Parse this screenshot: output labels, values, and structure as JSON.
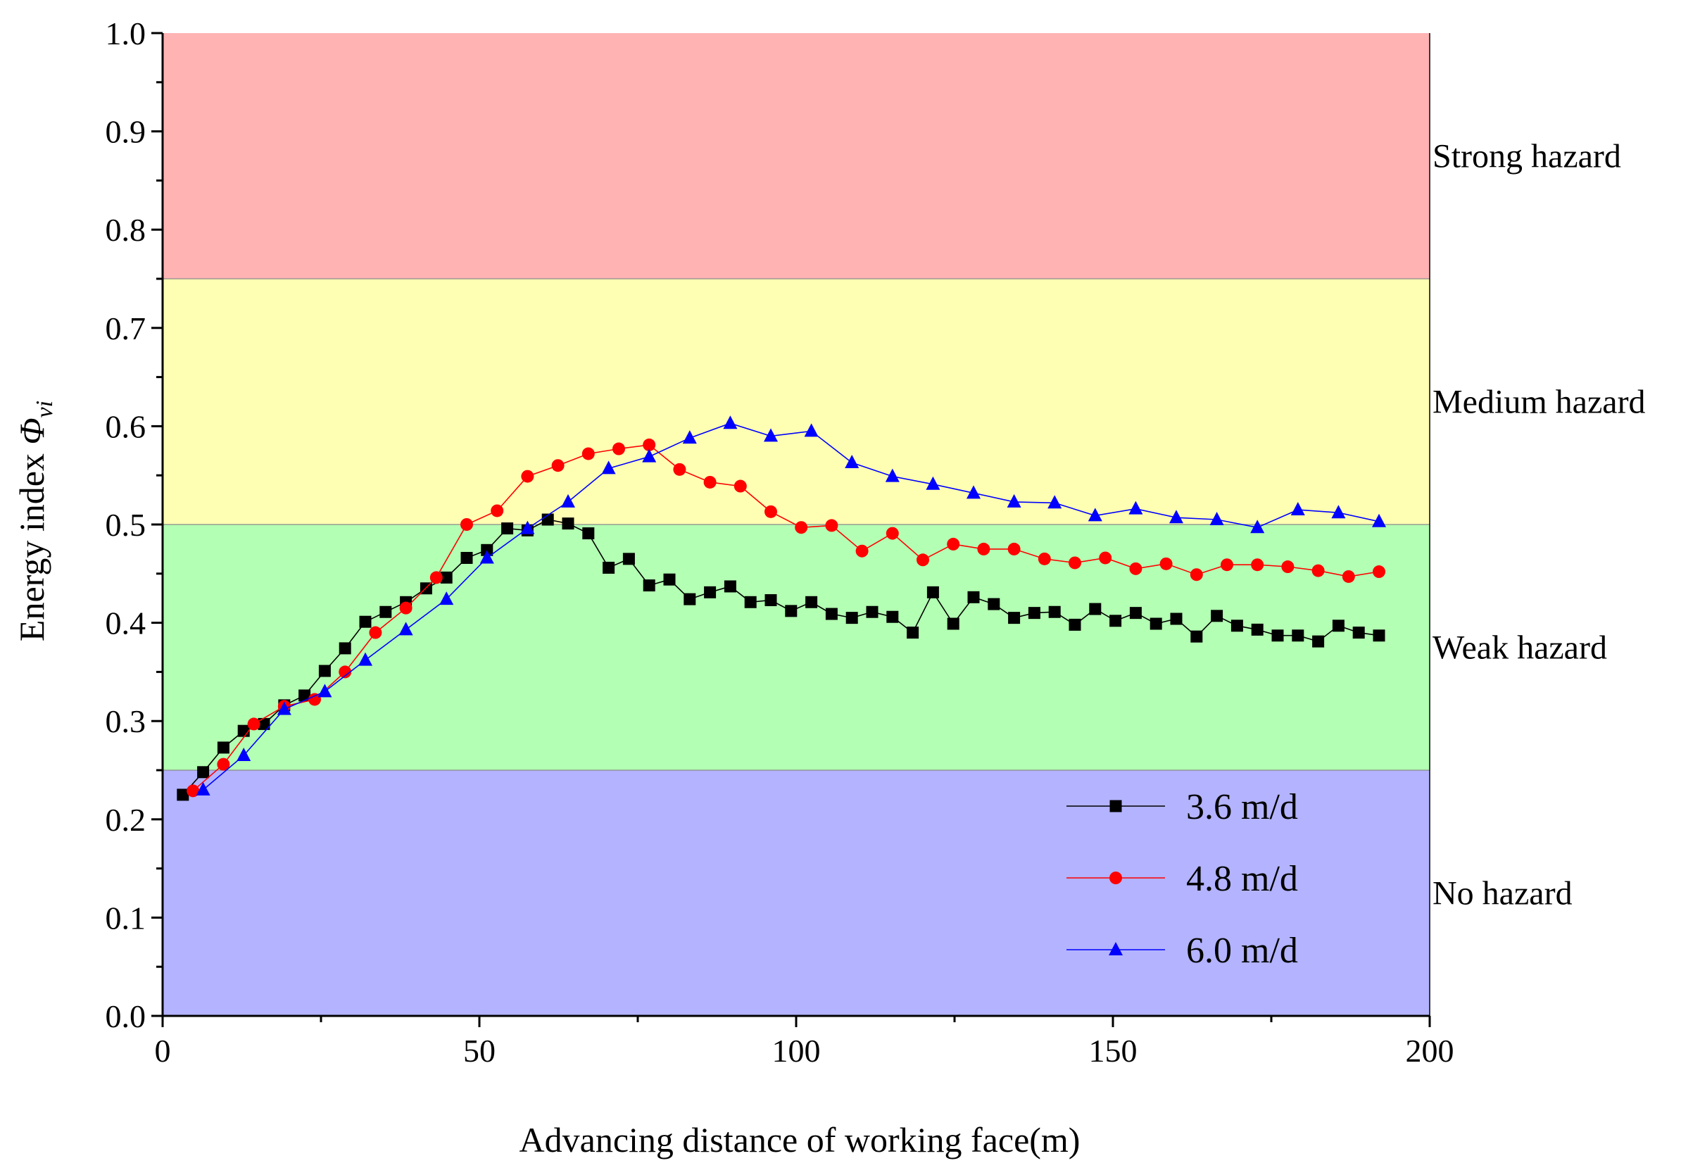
{
  "chart_data": {
    "type": "line",
    "title": "",
    "xlabel": "Advancing distance of working face(m)",
    "ylabel_text": "Energy index ",
    "ylabel_symbol": "Φ",
    "ylabel_subscript": "vi",
    "xlim": [
      0,
      200
    ],
    "ylim": [
      0.0,
      1.0
    ],
    "x_ticks": [
      0,
      50,
      100,
      150,
      200
    ],
    "x_tick_labels": [
      "0",
      "50",
      "100",
      "150",
      "200"
    ],
    "y_ticks": [
      0.0,
      0.1,
      0.2,
      0.3,
      0.4,
      0.5,
      0.6,
      0.7,
      0.8,
      0.9,
      1.0
    ],
    "y_tick_labels": [
      "0.0",
      "0.1",
      "0.2",
      "0.3",
      "0.4",
      "0.5",
      "0.6",
      "0.7",
      "0.8",
      "0.9",
      "1.0"
    ],
    "grid": false,
    "legend_position": "bottom-right",
    "zones": [
      {
        "label": "No hazard",
        "from": 0.0,
        "to": 0.25,
        "color": "#b3b3ff"
      },
      {
        "label": "Weak hazard",
        "from": 0.25,
        "to": 0.5,
        "color": "#b3ffb3"
      },
      {
        "label": "Medium hazard",
        "from": 0.5,
        "to": 0.75,
        "color": "#ffffb3"
      },
      {
        "label": "Strong hazard",
        "from": 0.75,
        "to": 1.0,
        "color": "#ffb3b3"
      }
    ],
    "series": [
      {
        "name": "3.6 m/d",
        "color": "#000000",
        "marker": "square",
        "x": [
          3.2,
          6.4,
          9.6,
          12.8,
          16,
          19.2,
          22.4,
          25.6,
          28.8,
          32,
          35.2,
          38.4,
          41.6,
          44.8,
          48,
          51.2,
          54.4,
          57.6,
          60.8,
          64,
          67.2,
          70.4,
          73.6,
          76.8,
          80,
          83.2,
          86.4,
          89.6,
          92.8,
          96,
          99.2,
          102.4,
          105.6,
          108.8,
          112,
          115.2,
          118.4,
          121.6,
          124.8,
          128,
          131.2,
          134.4,
          137.6,
          140.8,
          144,
          147.2,
          150.4,
          153.6,
          156.8,
          160,
          163.2,
          166.4,
          169.6,
          172.8,
          176,
          179.2,
          182.4,
          185.6,
          188.8,
          192
        ],
        "y": [
          0.225,
          0.248,
          0.273,
          0.29,
          0.297,
          0.316,
          0.326,
          0.351,
          0.374,
          0.401,
          0.411,
          0.421,
          0.435,
          0.446,
          0.466,
          0.474,
          0.496,
          0.494,
          0.505,
          0.501,
          0.491,
          0.456,
          0.465,
          0.438,
          0.444,
          0.424,
          0.431,
          0.437,
          0.421,
          0.423,
          0.412,
          0.421,
          0.409,
          0.405,
          0.411,
          0.406,
          0.39,
          0.431,
          0.399,
          0.426,
          0.419,
          0.405,
          0.41,
          0.411,
          0.398,
          0.414,
          0.402,
          0.41,
          0.399,
          0.404,
          0.386,
          0.407,
          0.397,
          0.393,
          0.387,
          0.387,
          0.381,
          0.397,
          0.39,
          0.387
        ]
      },
      {
        "name": "4.8 m/d",
        "color": "#ff0000",
        "marker": "circle",
        "x": [
          4.8,
          9.6,
          14.4,
          19.2,
          24,
          28.8,
          33.6,
          38.4,
          43.2,
          48,
          52.8,
          57.6,
          62.4,
          67.2,
          72,
          76.8,
          81.6,
          86.4,
          91.2,
          96,
          100.8,
          105.6,
          110.4,
          115.2,
          120,
          124.8,
          129.6,
          134.4,
          139.2,
          144,
          148.8,
          153.6,
          158.4,
          163.2,
          168,
          172.8,
          177.6,
          182.4,
          187.2,
          192
        ],
        "y": [
          0.229,
          0.256,
          0.297,
          0.315,
          0.322,
          0.35,
          0.39,
          0.415,
          0.446,
          0.5,
          0.514,
          0.549,
          0.56,
          0.572,
          0.577,
          0.581,
          0.556,
          0.543,
          0.539,
          0.513,
          0.497,
          0.499,
          0.473,
          0.491,
          0.464,
          0.48,
          0.475,
          0.475,
          0.465,
          0.461,
          0.466,
          0.455,
          0.46,
          0.449,
          0.459,
          0.459,
          0.457,
          0.453,
          0.447,
          0.452
        ]
      },
      {
        "name": "6.0 m/d",
        "color": "#0000ff",
        "marker": "triangle",
        "x": [
          6.4,
          12.8,
          19.2,
          25.6,
          32,
          38.4,
          44.8,
          51.2,
          57.6,
          64,
          70.4,
          76.8,
          83.2,
          89.6,
          96,
          102.4,
          108.8,
          115.2,
          121.6,
          128,
          134.4,
          140.8,
          147.2,
          153.6,
          160,
          166.4,
          172.8,
          179.2,
          185.6,
          192
        ],
        "y": [
          0.23,
          0.265,
          0.312,
          0.33,
          0.362,
          0.393,
          0.424,
          0.466,
          0.496,
          0.523,
          0.557,
          0.569,
          0.588,
          0.603,
          0.59,
          0.595,
          0.563,
          0.549,
          0.541,
          0.532,
          0.523,
          0.522,
          0.509,
          0.516,
          0.507,
          0.505,
          0.497,
          0.515,
          0.512,
          0.503
        ]
      }
    ]
  }
}
